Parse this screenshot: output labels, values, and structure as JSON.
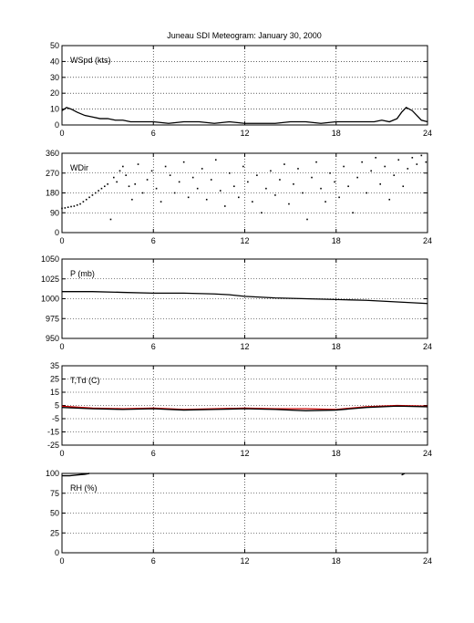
{
  "title": "Juneau SDI Meteogram:   January 30, 2000",
  "chart_data": [
    {
      "type": "line",
      "label": "WSpd (kts)",
      "xlim": [
        0,
        24
      ],
      "ylim": [
        0,
        50
      ],
      "xticks": [
        0,
        6,
        12,
        18,
        24
      ],
      "yticks": [
        0,
        10,
        20,
        30,
        40,
        50
      ],
      "grid": true,
      "series": [
        {
          "color": "#000000",
          "style": "line",
          "x": [
            0,
            0.3,
            0.6,
            1,
            1.5,
            2,
            2.5,
            3,
            3.5,
            4,
            4.5,
            5,
            6,
            7,
            8,
            9,
            10,
            11,
            12,
            13,
            14,
            15,
            16,
            17,
            18,
            19,
            20,
            20.5,
            21,
            21.5,
            22,
            22.3,
            22.6,
            23,
            23.3,
            23.6,
            24
          ],
          "y": [
            9,
            11,
            10,
            8,
            6,
            5,
            4,
            4,
            3,
            3,
            2,
            2,
            2,
            1,
            2,
            2,
            1,
            2,
            1,
            1,
            1,
            2,
            2,
            1,
            2,
            2,
            2,
            2,
            3,
            2,
            4,
            8,
            11,
            9,
            6,
            3,
            2
          ]
        }
      ]
    },
    {
      "type": "scatter",
      "label": "WDir",
      "xlim": [
        0,
        24
      ],
      "ylim": [
        0,
        360
      ],
      "xticks": [
        0,
        6,
        12,
        18,
        24
      ],
      "yticks": [
        0,
        90,
        180,
        270,
        360
      ],
      "grid": true,
      "series": [
        {
          "color": "#000000",
          "style": "dots",
          "x": [
            0,
            0.2,
            0.4,
            0.6,
            0.8,
            1,
            1.2,
            1.4,
            1.6,
            1.8,
            2,
            2.2,
            2.4,
            2.6,
            2.8,
            3,
            3.2,
            3.4,
            3.6,
            3.8,
            4,
            4.2,
            4.4,
            4.6,
            4.8,
            5,
            5.3,
            5.6,
            5.9,
            6.2,
            6.5,
            6.8,
            7.1,
            7.4,
            7.7,
            8,
            8.3,
            8.6,
            8.9,
            9.2,
            9.5,
            9.8,
            10.1,
            10.4,
            10.7,
            11,
            11.3,
            11.6,
            11.9,
            12.2,
            12.5,
            12.8,
            13.1,
            13.4,
            13.7,
            14,
            14.3,
            14.6,
            14.9,
            15.2,
            15.5,
            15.8,
            16.1,
            16.4,
            16.7,
            17,
            17.3,
            17.6,
            17.9,
            18.2,
            18.5,
            18.8,
            19.1,
            19.4,
            19.7,
            20,
            20.3,
            20.6,
            20.9,
            21.2,
            21.5,
            21.8,
            22.1,
            22.4,
            22.7,
            23,
            23.3,
            23.6,
            23.9
          ],
          "y": [
            110,
            112,
            115,
            118,
            120,
            125,
            130,
            140,
            150,
            160,
            170,
            180,
            190,
            200,
            210,
            220,
            60,
            250,
            230,
            280,
            300,
            260,
            210,
            150,
            220,
            310,
            180,
            240,
            280,
            200,
            140,
            300,
            260,
            180,
            230,
            320,
            160,
            250,
            200,
            290,
            150,
            240,
            330,
            190,
            120,
            270,
            210,
            160,
            300,
            230,
            140,
            260,
            90,
            200,
            280,
            170,
            240,
            310,
            130,
            220,
            290,
            180,
            60,
            250,
            320,
            200,
            140,
            270,
            230,
            160,
            300,
            210,
            90,
            250,
            320,
            180,
            280,
            340,
            220,
            300,
            150,
            260,
            330,
            210,
            290,
            340,
            310,
            350,
            320
          ]
        }
      ]
    },
    {
      "type": "line",
      "label": "P (mb)",
      "xlim": [
        0,
        24
      ],
      "ylim": [
        950,
        1050
      ],
      "xticks": [
        0,
        6,
        12,
        18,
        24
      ],
      "yticks": [
        950,
        975,
        1000,
        1025,
        1050
      ],
      "grid": true,
      "series": [
        {
          "color": "#000000",
          "style": "line",
          "x": [
            0,
            2,
            4,
            6,
            8,
            10,
            11,
            12,
            14,
            16,
            18,
            20,
            22,
            24
          ],
          "y": [
            1009,
            1009,
            1008,
            1007,
            1007,
            1006,
            1005,
            1003,
            1001,
            1000,
            999,
            998,
            996,
            994
          ]
        }
      ]
    },
    {
      "type": "line",
      "label": "T,Td (C)",
      "xlim": [
        0,
        24
      ],
      "ylim": [
        -25,
        35
      ],
      "xticks": [
        0,
        6,
        12,
        18,
        24
      ],
      "yticks": [
        -25,
        -15,
        -5,
        5,
        15,
        25,
        35
      ],
      "grid": true,
      "series": [
        {
          "color": "#cc0000",
          "style": "line",
          "x": [
            0,
            2,
            4,
            6,
            8,
            10,
            12,
            14,
            16,
            18,
            20,
            22,
            24
          ],
          "y": [
            4.5,
            3,
            2.5,
            3,
            2,
            2.5,
            3,
            2.5,
            2.5,
            2,
            4,
            5,
            4.5
          ]
        },
        {
          "color": "#000000",
          "style": "line",
          "x": [
            0,
            2,
            4,
            6,
            8,
            10,
            12,
            14,
            16,
            18,
            20,
            22,
            24
          ],
          "y": [
            3.5,
            2.5,
            2,
            2.5,
            1.5,
            2,
            2.5,
            2,
            1,
            1.5,
            3.5,
            4.5,
            4
          ]
        }
      ]
    },
    {
      "type": "line",
      "label": "RH (%)",
      "xlim": [
        0,
        24
      ],
      "ylim": [
        0,
        100
      ],
      "xticks": [
        0,
        6,
        12,
        18,
        24
      ],
      "yticks": [
        0,
        25,
        50,
        75,
        100
      ],
      "grid": true,
      "series": [
        {
          "color": "#000000",
          "style": "segments",
          "segments": [
            {
              "x": [
                0,
                0.5,
                1,
                1.5,
                1.8
              ],
              "y": [
                97,
                97,
                98,
                99,
                100
              ]
            },
            {
              "x": [
                22.3,
                22.5
              ],
              "y": [
                98,
                100
              ]
            }
          ]
        }
      ]
    }
  ]
}
